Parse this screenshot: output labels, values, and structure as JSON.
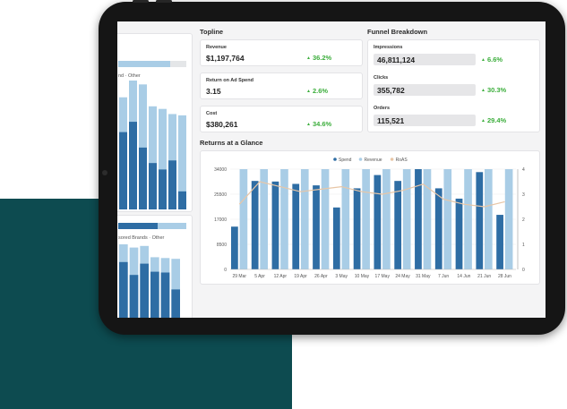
{
  "topline": {
    "title": "Topline",
    "metrics": [
      {
        "label": "Revenue",
        "value": "$1,197,764",
        "change": "36.2%"
      },
      {
        "label": "Return on Ad Spend",
        "value": "3.15",
        "change": "2.6%"
      },
      {
        "label": "Cost",
        "value": "$380,261",
        "change": "34.6%"
      }
    ]
  },
  "funnel": {
    "title": "Funnel Breakdown",
    "metrics": [
      {
        "label": "Impressions",
        "value": "46,811,124",
        "change": "6.6%"
      },
      {
        "label": "Clicks",
        "value": "355,782",
        "change": "30.3%"
      },
      {
        "label": "Orders",
        "value": "115,521",
        "change": "29.4%"
      }
    ]
  },
  "left_panel": {
    "legend1": "nd · Other",
    "legend2": "sored Brands · Other",
    "progress_fill": 0.76
  },
  "colors": {
    "spend": "#2e6da4",
    "revenue": "#a9cde6",
    "roas": "#e8c6a6",
    "teal": "#0d4b50",
    "positive": "#3cae3c"
  },
  "chart_data": {
    "type": "bar",
    "title": "Returns at a Glance",
    "legend": [
      "Spend",
      "Revenue",
      "RoAS"
    ],
    "legend_position": "top-center",
    "categories": [
      "29 Mar",
      "5 Apr",
      "12 Apr",
      "19 Apr",
      "26 Apr",
      "3 May",
      "10 May",
      "17 May",
      "24 May",
      "31 May",
      "7 Jun",
      "14 Jun",
      "21 Jun",
      "28 Jun"
    ],
    "y_ticks": [
      "0",
      "8500",
      "17000",
      "25500",
      "34000"
    ],
    "y2_ticks": [
      "0",
      "1",
      "2",
      "3",
      "4"
    ],
    "ylim": [
      0,
      34000
    ],
    "y2lim": [
      0,
      4
    ],
    "grid": true,
    "series": [
      {
        "name": "Spend",
        "type": "bar",
        "values": [
          14500,
          30000,
          29800,
          29000,
          28500,
          21000,
          27500,
          32000,
          30000,
          34000,
          27500,
          24000,
          33000,
          18500
        ]
      },
      {
        "name": "Revenue",
        "type": "bar",
        "values": [
          34000,
          34000,
          34000,
          34000,
          34000,
          34000,
          34000,
          34000,
          34000,
          34000,
          34000,
          34000,
          34000,
          34000
        ]
      },
      {
        "name": "RoAS",
        "type": "line",
        "axis": "right",
        "values": [
          2.6,
          3.5,
          3.3,
          3.1,
          3.2,
          3.3,
          3.1,
          3.0,
          3.15,
          3.4,
          2.8,
          2.6,
          2.5,
          2.7
        ]
      }
    ]
  },
  "left_chart1": {
    "spend": [
      0.6,
      0.68,
      0.48,
      0.36,
      0.31,
      0.38,
      0.14
    ],
    "revenue": [
      0.87,
      1.0,
      0.97,
      0.8,
      0.78,
      0.74,
      0.73
    ]
  },
  "left_chart2": {
    "spend": [
      0.78,
      0.62,
      0.76,
      0.66,
      0.65,
      0.44
    ],
    "revenue": [
      1.0,
      0.96,
      0.98,
      0.84,
      0.83,
      0.82
    ]
  }
}
